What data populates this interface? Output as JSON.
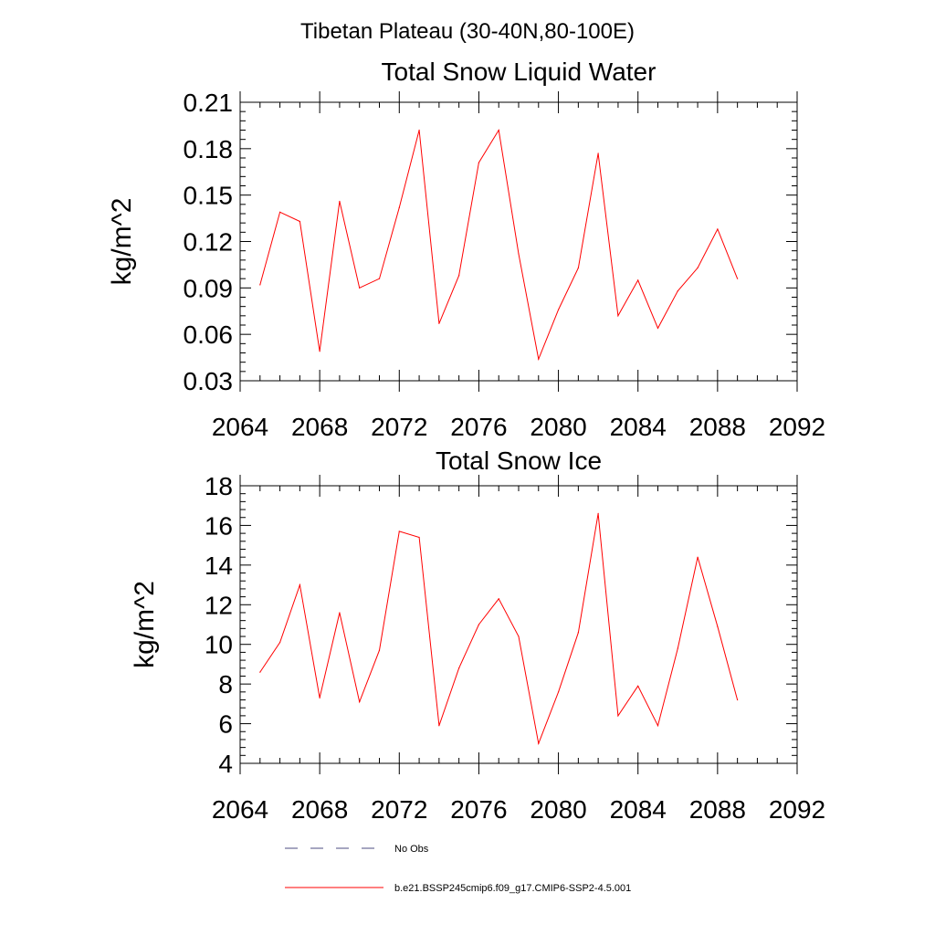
{
  "suptitle": "Tibetan Plateau (30-40N,80-100E)",
  "colors": {
    "model": "#ff0000",
    "obs": "#4d4d80",
    "axis": "#000000"
  },
  "legend": {
    "placement": "bottom-center",
    "entries": [
      {
        "label": "No Obs",
        "style": "dashed",
        "color": "#4d4d80"
      },
      {
        "label": "b.e21.BSSP245cmip6.f09_g17.CMIP6-SSP2-4.5.001",
        "style": "solid",
        "color": "#ff0000"
      }
    ]
  },
  "chart_data": [
    {
      "type": "line",
      "title": "Total Snow Liquid Water",
      "xlabel": "",
      "ylabel": "kg/m^2",
      "xlim": [
        2064,
        2092
      ],
      "ylim": [
        0.03,
        0.21
      ],
      "xticks": [
        "2064",
        "2068",
        "2072",
        "2076",
        "2080",
        "2084",
        "2088",
        "2092"
      ],
      "yticks": [
        "0.03",
        "0.06",
        "0.09",
        "0.12",
        "0.15",
        "0.18",
        "0.21"
      ],
      "grid": false,
      "series": [
        {
          "name": "b.e21.BSSP245cmip6.f09_g17.CMIP6-SSP2-4.5.001",
          "x": [
            2065,
            2066,
            2067,
            2068,
            2069,
            2070,
            2071,
            2072,
            2073,
            2074,
            2075,
            2076,
            2077,
            2078,
            2079,
            2080,
            2081,
            2082,
            2083,
            2084,
            2085,
            2086,
            2087,
            2088,
            2089
          ],
          "values": [
            0.092,
            0.139,
            0.133,
            0.049,
            0.146,
            0.09,
            0.096,
            0.142,
            0.192,
            0.067,
            0.098,
            0.171,
            0.192,
            0.112,
            0.044,
            0.076,
            0.103,
            0.177,
            0.072,
            0.095,
            0.064,
            0.088,
            0.103,
            0.128,
            0.096
          ]
        }
      ]
    },
    {
      "type": "line",
      "title": "Total Snow Ice",
      "xlabel": "",
      "ylabel": "kg/m^2",
      "xlim": [
        2064,
        2092
      ],
      "ylim": [
        4,
        18
      ],
      "xticks": [
        "2064",
        "2068",
        "2072",
        "2076",
        "2080",
        "2084",
        "2088",
        "2092"
      ],
      "yticks": [
        "4",
        "6",
        "8",
        "10",
        "12",
        "14",
        "16",
        "18"
      ],
      "grid": false,
      "series": [
        {
          "name": "b.e21.BSSP245cmip6.f09_g17.CMIP6-SSP2-4.5.001",
          "x": [
            2065,
            2066,
            2067,
            2068,
            2069,
            2070,
            2071,
            2072,
            2073,
            2074,
            2075,
            2076,
            2077,
            2078,
            2079,
            2080,
            2081,
            2082,
            2083,
            2084,
            2085,
            2086,
            2087,
            2088,
            2089
          ],
          "values": [
            8.6,
            10.1,
            13.0,
            7.3,
            11.6,
            7.1,
            9.7,
            15.7,
            15.4,
            5.9,
            8.8,
            11.0,
            12.3,
            10.4,
            5.0,
            7.6,
            10.6,
            16.6,
            6.4,
            7.9,
            5.9,
            9.8,
            14.4,
            10.9,
            7.2
          ]
        }
      ]
    }
  ]
}
